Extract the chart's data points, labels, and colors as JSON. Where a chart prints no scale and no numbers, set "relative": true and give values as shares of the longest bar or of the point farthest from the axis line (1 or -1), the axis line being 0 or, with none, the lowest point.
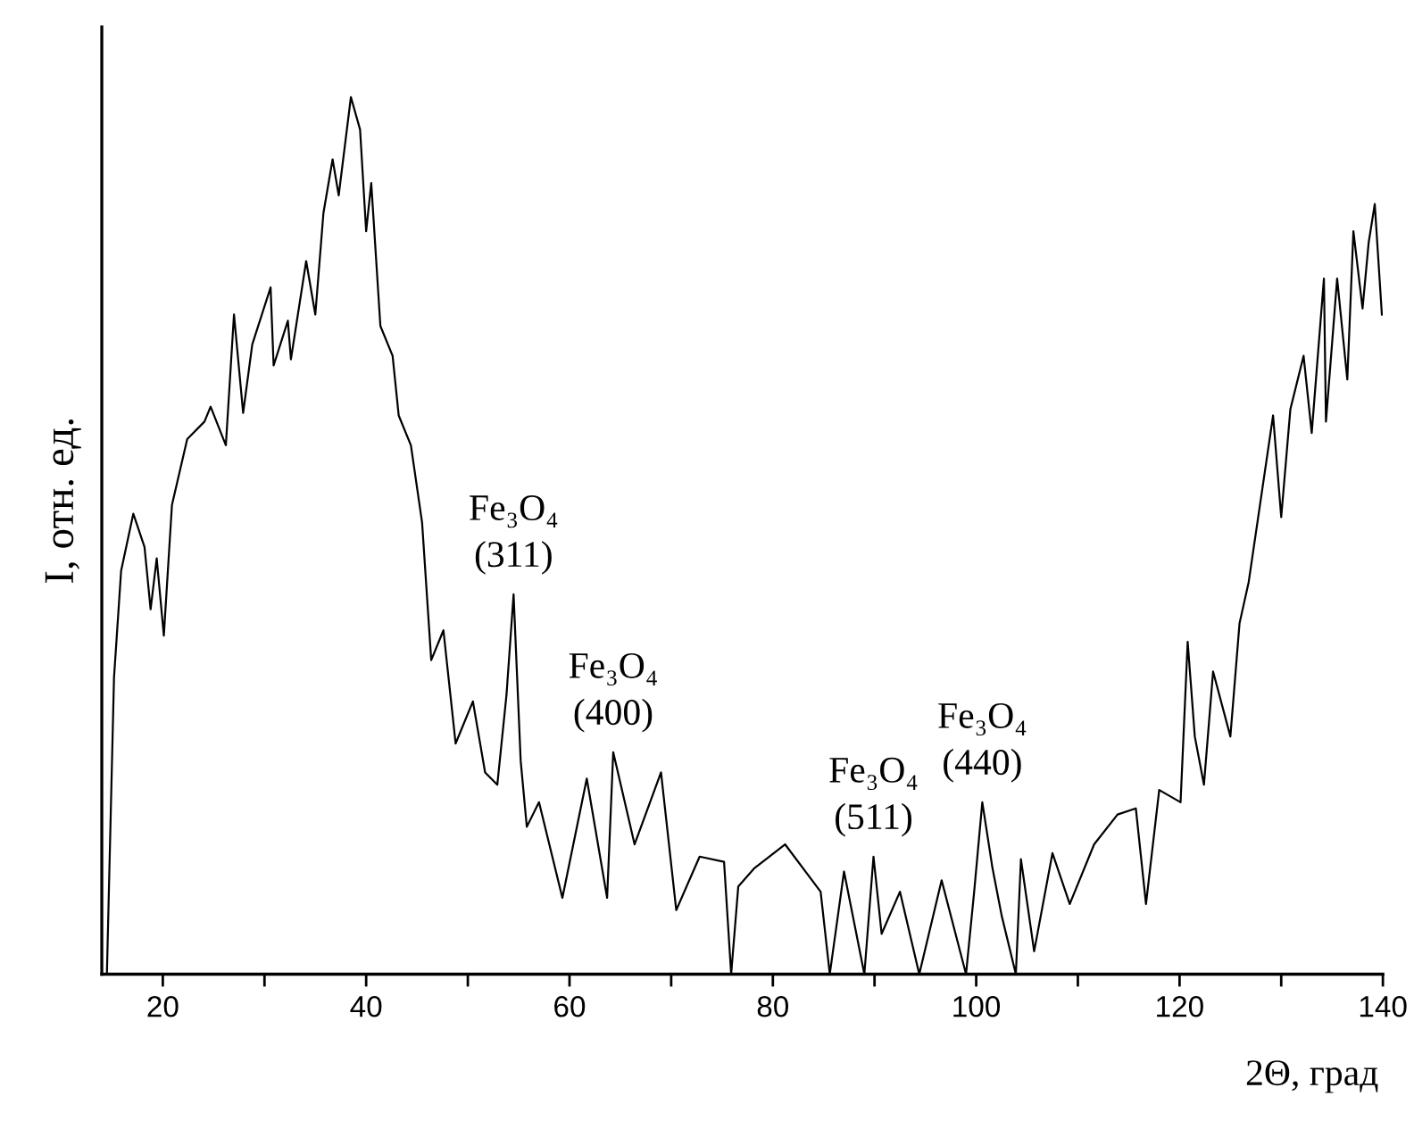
{
  "chart_data": {
    "type": "line",
    "relative": true,
    "xlabel": "2Θ, град",
    "ylabel": "I, отн. ед.",
    "xlim": [
      14,
      140
    ],
    "xticks": [
      20,
      {
        "value": 30,
        "label": null
      },
      40,
      {
        "value": 50,
        "label": null
      },
      60,
      {
        "value": 70,
        "label": null
      },
      80,
      {
        "value": 90,
        "label": null
      },
      100,
      {
        "value": 110,
        "label": null
      },
      120,
      {
        "value": 130,
        "label": null
      },
      140
    ],
    "tick_labels": "x",
    "grid": false,
    "marker": "none",
    "line_style": "solid",
    "annotations": [
      {
        "text": "Fe₃O₄\n(311)",
        "x": 54.5,
        "y": 0.433
      },
      {
        "text": "Fe₃O₄\n(400)",
        "x": 64.3,
        "y": 0.253
      },
      {
        "text": "Fe₃O₄\n(511)",
        "x": 89.9,
        "y": 0.134
      },
      {
        "text": "Fe₃O₄\n(440)",
        "x": 100.6,
        "y": 0.196
      }
    ],
    "series": [
      {
        "color": "#000000",
        "x": [
          14.5,
          15.2,
          15.9,
          17.1,
          18.2,
          18.8,
          19.4,
          20.1,
          20.9,
          22.4,
          24.1,
          24.7,
          26.2,
          27.0,
          27.9,
          28.8,
          30.6,
          30.9,
          32.3,
          32.6,
          34.1,
          35.0,
          35.8,
          36.7,
          37.3,
          38.5,
          39.4,
          40.0,
          40.5,
          41.4,
          42.6,
          43.2,
          44.4,
          45.5,
          46.4,
          47.6,
          48.8,
          50.5,
          51.7,
          52.9,
          53.8,
          54.5,
          55.2,
          55.8,
          57.0,
          59.3,
          61.7,
          63.7,
          64.3,
          66.4,
          69.0,
          70.5,
          72.8,
          75.2,
          75.9,
          76.6,
          78.2,
          81.2,
          84.7,
          85.6,
          87.0,
          89.0,
          89.9,
          90.7,
          92.5,
          94.4,
          96.6,
          99.0,
          99.8,
          100.6,
          101.6,
          102.5,
          103.9,
          104.4,
          105.7,
          107.5,
          109.2,
          111.6,
          113.9,
          115.7,
          116.7,
          118.0,
          120.1,
          120.8,
          121.5,
          122.4,
          123.3,
          125.0,
          125.9,
          126.8,
          129.2,
          130.0,
          130.9,
          132.2,
          133.0,
          134.2,
          134.4,
          135.5,
          136.5,
          137.1,
          138.0,
          138.6,
          139.2,
          139.9
        ],
        "values": [
          0,
          0.338,
          0.46,
          0.525,
          0.487,
          0.416,
          0.474,
          0.386,
          0.535,
          0.61,
          0.63,
          0.647,
          0.603,
          0.752,
          0.64,
          0.718,
          0.783,
          0.694,
          0.745,
          0.701,
          0.813,
          0.752,
          0.868,
          0.929,
          0.888,
          1.0,
          0.963,
          0.847,
          0.902,
          0.739,
          0.705,
          0.637,
          0.603,
          0.515,
          0.358,
          0.392,
          0.263,
          0.311,
          0.23,
          0.216,
          0.318,
          0.433,
          0.243,
          0.168,
          0.196,
          0.087,
          0.223,
          0.087,
          0.253,
          0.148,
          0.23,
          0.073,
          0.134,
          0.128,
          0,
          0.1,
          0.121,
          0.148,
          0.094,
          0,
          0.117,
          0,
          0.134,
          0.046,
          0.094,
          0,
          0.107,
          0,
          0.094,
          0.196,
          0.121,
          0.067,
          0,
          0.131,
          0.026,
          0.138,
          0.08,
          0.148,
          0.182,
          0.189,
          0.08,
          0.21,
          0.196,
          0.379,
          0.271,
          0.216,
          0.345,
          0.271,
          0.4,
          0.447,
          0.637,
          0.521,
          0.644,
          0.705,
          0.617,
          0.793,
          0.63,
          0.793,
          0.678,
          0.847,
          0.759,
          0.834,
          0.878,
          0.752
        ]
      }
    ]
  }
}
